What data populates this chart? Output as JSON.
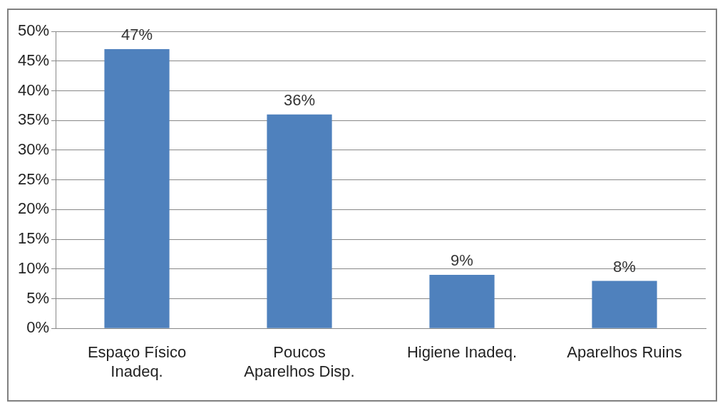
{
  "chart_data": {
    "type": "bar",
    "categories": [
      [
        "Espaço Físico",
        "Inadeq."
      ],
      [
        "Poucos",
        "Aparelhos Disp."
      ],
      [
        "Higiene Inadeq."
      ],
      [
        "Aparelhos Ruins"
      ]
    ],
    "values": [
      47,
      36,
      9,
      8
    ],
    "color": "#4f81bd",
    "value_labels": [
      "47%",
      "36%",
      "9%",
      "8%"
    ],
    "ylim": [
      0,
      50
    ],
    "yticks": [
      {
        "value": 0,
        "label": "0%"
      },
      {
        "value": 5,
        "label": "5%"
      },
      {
        "value": 10,
        "label": "10%"
      },
      {
        "value": 15,
        "label": "15%"
      },
      {
        "value": 20,
        "label": "20%"
      },
      {
        "value": 25,
        "label": "25%"
      },
      {
        "value": 30,
        "label": "30%"
      },
      {
        "value": 35,
        "label": "35%"
      },
      {
        "value": 40,
        "label": "40%"
      },
      {
        "value": 45,
        "label": "45%"
      },
      {
        "value": 50,
        "label": "50%"
      }
    ],
    "grid": "y",
    "legend": false
  }
}
